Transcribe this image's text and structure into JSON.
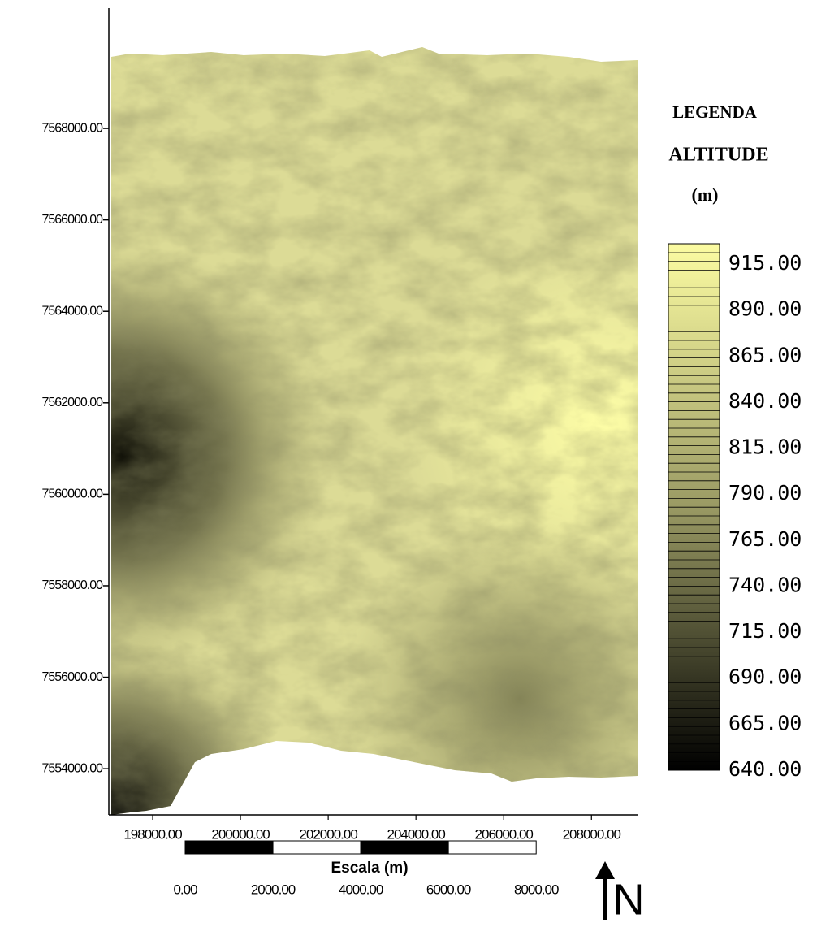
{
  "map": {
    "xlim": [
      197000,
      209050
    ],
    "ylim": [
      7552990,
      7570630
    ],
    "yticks": [
      {
        "value": 7568000,
        "label": "7568000.00"
      },
      {
        "value": 7566000,
        "label": "7566000.00"
      },
      {
        "value": 7564000,
        "label": "7564000.00"
      },
      {
        "value": 7562000,
        "label": "7562000.00"
      },
      {
        "value": 7560000,
        "label": "7560000.00"
      },
      {
        "value": 7558000,
        "label": "7558000.00"
      },
      {
        "value": 7556000,
        "label": "7556000.00"
      },
      {
        "value": 7554000,
        "label": "7554000.00"
      }
    ],
    "xticks": [
      {
        "value": 198000,
        "label": "198000.00"
      },
      {
        "value": 200000,
        "label": "200000.00"
      },
      {
        "value": 202000,
        "label": "202000.00"
      },
      {
        "value": 204000,
        "label": "204000.00"
      },
      {
        "value": 206000,
        "label": "206000.00"
      },
      {
        "value": 208000,
        "label": "208000.00"
      }
    ]
  },
  "legend": {
    "title": "LEGENDA",
    "subtitle": "ALTITUDE",
    "unit": "(m)",
    "labels": [
      {
        "value": 915,
        "label": "915.00"
      },
      {
        "value": 890,
        "label": "890.00"
      },
      {
        "value": 865,
        "label": "865.00"
      },
      {
        "value": 840,
        "label": "840.00"
      },
      {
        "value": 815,
        "label": "815.00"
      },
      {
        "value": 790,
        "label": "790.00"
      },
      {
        "value": 765,
        "label": "765.00"
      },
      {
        "value": 740,
        "label": "740.00"
      },
      {
        "value": 715,
        "label": "715.00"
      },
      {
        "value": 690,
        "label": "690.00"
      },
      {
        "value": 665,
        "label": "665.00"
      },
      {
        "value": 640,
        "label": "640.00"
      }
    ]
  },
  "scale_bar": {
    "title": "Escala (m)",
    "ticks": [
      {
        "value": 0,
        "label": "0.00"
      },
      {
        "value": 2000,
        "label": "2000.00"
      },
      {
        "value": 4000,
        "label": "4000.00"
      },
      {
        "value": 6000,
        "label": "6000.00"
      },
      {
        "value": 8000,
        "label": "8000.00"
      }
    ]
  },
  "north": "N"
}
